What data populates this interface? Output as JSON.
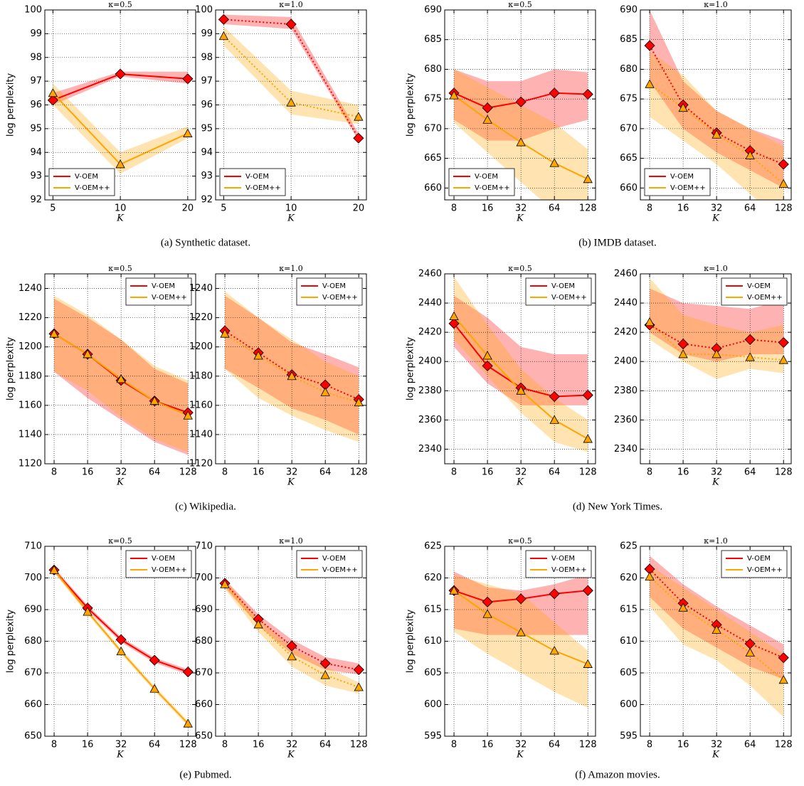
{
  "captions": [
    "(a) Synthetic dataset.",
    "(b) IMDB dataset.",
    "(c) Wikipedia.",
    "(d) New York Times.",
    "(e) Pubmed.",
    "(f) Amazon movies."
  ],
  "chart_data": [
    {
      "type": "line",
      "title": "κ=0.5",
      "ylabel": "log perplexity",
      "xlabel": "K",
      "x": [
        5,
        10,
        20
      ],
      "xlim": [
        4.6,
        21.7
      ],
      "xticks": [
        5,
        10,
        20
      ],
      "log_x": true,
      "ylim": [
        92,
        100
      ],
      "yticks": [
        92,
        93,
        94,
        95,
        96,
        97,
        98,
        99,
        100
      ],
      "grid": true,
      "legend": "lower left",
      "series": [
        {
          "name": "V-OEM",
          "color": "#ff0000",
          "marker": "diamond",
          "linestyle": "solid",
          "values": [
            96.2,
            97.3,
            97.1
          ],
          "lower": [
            96.0,
            97.2,
            96.9
          ],
          "upper": [
            96.5,
            97.4,
            97.4
          ]
        },
        {
          "name": "V-OEM++",
          "color": "#ffa500",
          "marker": "triangle",
          "linestyle": "solid",
          "values": [
            96.5,
            93.5,
            94.8
          ],
          "lower": [
            96.0,
            93.1,
            94.6
          ],
          "upper": [
            96.9,
            94.0,
            95.1
          ]
        }
      ]
    },
    {
      "type": "line",
      "title": "κ=1.0",
      "xlabel": "K",
      "x": [
        5,
        10,
        20
      ],
      "xlim": [
        4.6,
        21.7
      ],
      "xticks": [
        5,
        10,
        20
      ],
      "log_x": true,
      "ylim": [
        92,
        100
      ],
      "yticks": [
        92,
        93,
        94,
        95,
        96,
        97,
        98,
        99,
        100
      ],
      "grid": true,
      "legend": "lower left",
      "series": [
        {
          "name": "V-OEM",
          "color": "#ff0000",
          "marker": "diamond",
          "linestyle": "dotted",
          "values": [
            99.6,
            99.4,
            94.6
          ],
          "lower": [
            99.4,
            99.2,
            94.5
          ],
          "upper": [
            99.8,
            99.7,
            94.8
          ]
        },
        {
          "name": "V-OEM++",
          "color": "#ffa500",
          "marker": "triangle",
          "linestyle": "dotted",
          "values": [
            98.9,
            96.1,
            95.5
          ],
          "lower": [
            98.5,
            95.6,
            95.2
          ],
          "upper": [
            99.3,
            96.6,
            96.0
          ]
        }
      ]
    },
    {
      "type": "line",
      "title": "κ=0.5",
      "ylabel": "log perplexity",
      "xlabel": "K",
      "x": [
        8,
        16,
        32,
        64,
        128
      ],
      "xlim": [
        6.6,
        150
      ],
      "xticks": [
        8,
        16,
        32,
        64,
        128
      ],
      "log_x": true,
      "ylim": [
        658,
        690
      ],
      "yticks": [
        660,
        665,
        670,
        675,
        680,
        685,
        690
      ],
      "grid": true,
      "legend": "lower left",
      "series": [
        {
          "name": "V-OEM",
          "color": "#ff0000",
          "marker": "diamond",
          "linestyle": "solid",
          "values": [
            676,
            673.5,
            674.5,
            676,
            675.8
          ],
          "lower": [
            671.5,
            668,
            668,
            670,
            671.5
          ],
          "upper": [
            680,
            678,
            678,
            680,
            679.5
          ]
        },
        {
          "name": "V-OEM++",
          "color": "#ffa500",
          "marker": "triangle",
          "linestyle": "solid",
          "values": [
            675.6,
            671.5,
            667.7,
            664.2,
            661.5
          ],
          "lower": [
            671,
            666,
            661,
            656,
            655
          ],
          "upper": [
            680,
            677,
            674,
            671,
            666.5
          ]
        }
      ]
    },
    {
      "type": "line",
      "title": "κ=1.0",
      "xlabel": "K",
      "x": [
        8,
        16,
        32,
        64,
        128
      ],
      "xlim": [
        6.6,
        150
      ],
      "xticks": [
        8,
        16,
        32,
        64,
        128
      ],
      "log_x": true,
      "ylim": [
        658,
        690
      ],
      "yticks": [
        660,
        665,
        670,
        675,
        680,
        685,
        690
      ],
      "grid": true,
      "legend": "lower left",
      "series": [
        {
          "name": "V-OEM",
          "color": "#ff0000",
          "marker": "diamond",
          "linestyle": "dotted",
          "values": [
            684,
            674,
            669.3,
            666.3,
            664
          ],
          "lower": [
            678,
            670,
            666,
            663,
            660
          ],
          "upper": [
            690,
            678,
            673,
            670,
            668
          ]
        },
        {
          "name": "V-OEM++",
          "color": "#ffa500",
          "marker": "triangle",
          "linestyle": "dotted",
          "values": [
            677.5,
            673.5,
            669,
            665.5,
            660.7
          ],
          "lower": [
            672,
            668,
            664,
            659,
            654
          ],
          "upper": [
            683,
            679,
            673,
            670,
            667
          ]
        }
      ]
    },
    {
      "type": "line",
      "title": "κ=0.5",
      "ylabel": "log perplexity",
      "xlabel": "K",
      "x": [
        8,
        16,
        32,
        64,
        128
      ],
      "xlim": [
        6.6,
        150
      ],
      "xticks": [
        8,
        16,
        32,
        64,
        128
      ],
      "log_x": true,
      "ylim": [
        1120,
        1250
      ],
      "yticks": [
        1120,
        1140,
        1160,
        1180,
        1200,
        1220,
        1240
      ],
      "grid": true,
      "legend": "upper right",
      "series": [
        {
          "name": "V-OEM",
          "color": "#ff0000",
          "marker": "diamond",
          "linestyle": "solid",
          "values": [
            1209,
            1195,
            1177,
            1163,
            1155
          ],
          "lower": [
            1183,
            1165,
            1150,
            1135,
            1126
          ],
          "upper": [
            1233,
            1220,
            1205,
            1185,
            1175
          ]
        },
        {
          "name": "V-OEM++",
          "color": "#ffa500",
          "marker": "triangle",
          "linestyle": "solid",
          "values": [
            1209,
            1195,
            1178,
            1163,
            1153
          ],
          "lower": [
            1183,
            1170,
            1152,
            1137,
            1128
          ],
          "upper": [
            1235,
            1222,
            1205,
            1187,
            1177
          ]
        }
      ]
    },
    {
      "type": "line",
      "title": "κ=1.0",
      "xlabel": "K",
      "x": [
        8,
        16,
        32,
        64,
        128
      ],
      "xlim": [
        6.6,
        150
      ],
      "xticks": [
        8,
        16,
        32,
        64,
        128
      ],
      "log_x": true,
      "ylim": [
        1120,
        1250
      ],
      "yticks": [
        1120,
        1140,
        1160,
        1180,
        1200,
        1220,
        1240
      ],
      "grid": true,
      "legend": "upper right",
      "series": [
        {
          "name": "V-OEM",
          "color": "#ff0000",
          "marker": "diamond",
          "linestyle": "dotted",
          "values": [
            1211,
            1196,
            1181,
            1174,
            1164
          ],
          "lower": [
            1185,
            1172,
            1158,
            1150,
            1140
          ],
          "upper": [
            1235,
            1220,
            1203,
            1195,
            1186
          ]
        },
        {
          "name": "V-OEM++",
          "color": "#ffa500",
          "marker": "triangle",
          "linestyle": "dotted",
          "values": [
            1209,
            1194,
            1180,
            1169,
            1162
          ],
          "lower": [
            1185,
            1165,
            1153,
            1143,
            1135
          ],
          "upper": [
            1238,
            1220,
            1205,
            1190,
            1180
          ]
        }
      ]
    },
    {
      "type": "line",
      "title": "κ=0.5",
      "ylabel": "log perplexity",
      "xlabel": "K",
      "x": [
        8,
        16,
        32,
        64,
        128
      ],
      "xlim": [
        6.6,
        150
      ],
      "xticks": [
        8,
        16,
        32,
        64,
        128
      ],
      "log_x": true,
      "ylim": [
        2330,
        2460
      ],
      "yticks": [
        2340,
        2360,
        2380,
        2400,
        2420,
        2440,
        2460
      ],
      "grid": true,
      "legend": "upper right",
      "series": [
        {
          "name": "V-OEM",
          "color": "#ff0000",
          "marker": "diamond",
          "linestyle": "solid",
          "values": [
            2426,
            2397,
            2382,
            2376,
            2377
          ],
          "lower": [
            2410,
            2385,
            2370,
            2370,
            2370
          ],
          "upper": [
            2445,
            2430,
            2410,
            2405,
            2405
          ]
        },
        {
          "name": "V-OEM++",
          "color": "#ffa500",
          "marker": "triangle",
          "linestyle": "solid",
          "values": [
            2431,
            2404,
            2380,
            2360,
            2347
          ],
          "lower": [
            2415,
            2390,
            2365,
            2345,
            2338
          ],
          "upper": [
            2458,
            2425,
            2395,
            2375,
            2360
          ]
        }
      ]
    },
    {
      "type": "line",
      "title": "κ=1.0",
      "xlabel": "K",
      "x": [
        8,
        16,
        32,
        64,
        128
      ],
      "xlim": [
        6.6,
        150
      ],
      "xticks": [
        8,
        16,
        32,
        64,
        128
      ],
      "log_x": true,
      "ylim": [
        2330,
        2460
      ],
      "yticks": [
        2340,
        2360,
        2380,
        2400,
        2420,
        2440,
        2460
      ],
      "grid": true,
      "legend": "upper right",
      "series": [
        {
          "name": "V-OEM",
          "color": "#ff0000",
          "marker": "diamond",
          "linestyle": "dotted",
          "values": [
            2425,
            2412,
            2409,
            2415,
            2413
          ],
          "lower": [
            2420,
            2405,
            2400,
            2405,
            2405
          ],
          "upper": [
            2450,
            2440,
            2438,
            2436,
            2442
          ]
        },
        {
          "name": "V-OEM++",
          "color": "#ffa500",
          "marker": "triangle",
          "linestyle": "dotted",
          "values": [
            2427,
            2405,
            2405,
            2403,
            2401
          ],
          "lower": [
            2415,
            2400,
            2388,
            2395,
            2392
          ],
          "upper": [
            2457,
            2432,
            2425,
            2420,
            2425
          ]
        }
      ]
    },
    {
      "type": "line",
      "title": "κ=0.5",
      "ylabel": "log perplexity",
      "xlabel": "K",
      "x": [
        8,
        16,
        32,
        64,
        128
      ],
      "xlim": [
        6.6,
        150
      ],
      "xticks": [
        8,
        16,
        32,
        64,
        128
      ],
      "log_x": true,
      "ylim": [
        650,
        710
      ],
      "yticks": [
        650,
        660,
        670,
        680,
        690,
        700,
        710
      ],
      "grid": true,
      "legend": "upper right",
      "series": [
        {
          "name": "V-OEM",
          "color": "#ff0000",
          "marker": "diamond",
          "linestyle": "solid",
          "values": [
            702.5,
            690.5,
            680.5,
            674,
            670.3
          ],
          "lower": [
            701.7,
            689.7,
            679.7,
            673.2,
            669.5
          ],
          "upper": [
            703.3,
            691.3,
            681.3,
            674.8,
            671.1
          ]
        },
        {
          "name": "V-OEM++",
          "color": "#ffa500",
          "marker": "triangle",
          "linestyle": "solid",
          "values": [
            702.5,
            689.3,
            676.8,
            665,
            654
          ],
          "lower": [
            701.7,
            688.5,
            676,
            664.2,
            653.2
          ],
          "upper": [
            703.3,
            690.1,
            677.6,
            665.8,
            654.8
          ]
        }
      ]
    },
    {
      "type": "line",
      "title": "κ=1.0",
      "xlabel": "K",
      "x": [
        8,
        16,
        32,
        64,
        128
      ],
      "xlim": [
        6.6,
        150
      ],
      "xticks": [
        8,
        16,
        32,
        64,
        128
      ],
      "log_x": true,
      "ylim": [
        650,
        710
      ],
      "yticks": [
        650,
        660,
        670,
        680,
        690,
        700,
        710
      ],
      "grid": true,
      "legend": "upper right",
      "series": [
        {
          "name": "V-OEM",
          "color": "#ff0000",
          "marker": "diamond",
          "linestyle": "dotted",
          "values": [
            698.3,
            687,
            678.5,
            673,
            671
          ],
          "lower": [
            697,
            685,
            676,
            671,
            669.5
          ],
          "upper": [
            699.5,
            688.5,
            680.5,
            675,
            673
          ]
        },
        {
          "name": "V-OEM++",
          "color": "#ffa500",
          "marker": "triangle",
          "linestyle": "dotted",
          "values": [
            698,
            685.3,
            675.2,
            669.3,
            665.5
          ],
          "lower": [
            696.5,
            683,
            672,
            666,
            663.5
          ],
          "upper": [
            699.5,
            687,
            678,
            672,
            667
          ]
        }
      ]
    },
    {
      "type": "line",
      "title": "κ=0.5",
      "ylabel": "log perplexity",
      "xlabel": "K",
      "x": [
        8,
        16,
        32,
        64,
        128
      ],
      "xlim": [
        6.6,
        150
      ],
      "xticks": [
        8,
        16,
        32,
        64,
        128
      ],
      "log_x": true,
      "ylim": [
        595,
        625
      ],
      "yticks": [
        595,
        600,
        605,
        610,
        615,
        620,
        625
      ],
      "grid": true,
      "legend": "upper right",
      "series": [
        {
          "name": "V-OEM",
          "color": "#ff0000",
          "marker": "diamond",
          "linestyle": "solid",
          "values": [
            618,
            616.2,
            616.7,
            617.5,
            618
          ],
          "lower": [
            612,
            611,
            611,
            611,
            611
          ],
          "upper": [
            621,
            618.5,
            618,
            619,
            620.5
          ]
        },
        {
          "name": "V-OEM++",
          "color": "#ffa500",
          "marker": "triangle",
          "linestyle": "solid",
          "values": [
            618,
            614.3,
            611.4,
            608.5,
            606.4
          ],
          "lower": [
            611.5,
            608,
            605,
            602,
            599.5
          ],
          "upper": [
            620.5,
            619,
            617.5,
            613,
            608.5
          ]
        }
      ]
    },
    {
      "type": "line",
      "title": "κ=1.0",
      "xlabel": "K",
      "x": [
        8,
        16,
        32,
        64,
        128
      ],
      "xlim": [
        6.6,
        150
      ],
      "xticks": [
        8,
        16,
        32,
        64,
        128
      ],
      "log_x": true,
      "ylim": [
        595,
        625
      ],
      "yticks": [
        595,
        600,
        605,
        610,
        615,
        620,
        625
      ],
      "grid": true,
      "legend": "upper right",
      "series": [
        {
          "name": "V-OEM",
          "color": "#ff0000",
          "marker": "diamond",
          "linestyle": "dotted",
          "values": [
            621.4,
            616,
            612.6,
            609.6,
            607.4
          ],
          "lower": [
            617,
            612,
            609,
            606,
            604
          ],
          "upper": [
            623.5,
            619,
            615.5,
            612.5,
            609.5
          ]
        },
        {
          "name": "V-OEM++",
          "color": "#ffa500",
          "marker": "triangle",
          "linestyle": "dotted",
          "values": [
            620.2,
            615.3,
            611.8,
            608.2,
            603.9
          ],
          "lower": [
            615.5,
            609.5,
            607,
            603,
            598
          ],
          "upper": [
            622,
            618.5,
            615,
            611.5,
            608
          ]
        }
      ]
    }
  ]
}
